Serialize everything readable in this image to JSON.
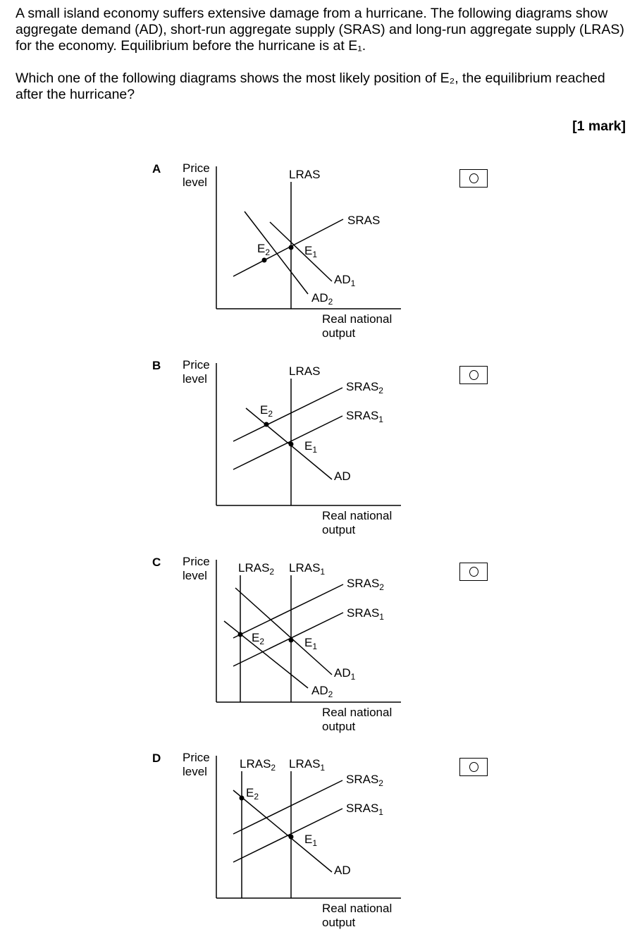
{
  "question": {
    "intro": "A small island economy suffers extensive damage from a hurricane.  The following diagrams show aggregate demand (AD), short-run aggregate supply (SRAS) and long-run aggregate supply (LRAS) for the economy.  Equilibrium before the hurricane is at E₁.",
    "prompt": "Which one of the following diagrams shows the most likely position of E₂, the equilibrium reached after the hurricane?",
    "marks": "[1 mark]"
  },
  "axis": {
    "y_line1": "Price",
    "y_line2": "level",
    "x_line1": "Real national",
    "x_line2": "output"
  },
  "options": [
    {
      "letter": "A",
      "labels": {
        "lras": "LRAS",
        "sras": "SRAS",
        "ad1": "AD",
        "ad1_sub": "1",
        "ad2": "AD",
        "ad2_sub": "2",
        "e1": "E",
        "e1_sub": "1",
        "e2": "E",
        "e2_sub": "2"
      }
    },
    {
      "letter": "B",
      "labels": {
        "lras": "LRAS",
        "sras2": "SRAS",
        "sras2_sub": "2",
        "sras1": "SRAS",
        "sras1_sub": "1",
        "ad": "AD",
        "e1": "E",
        "e1_sub": "1",
        "e2": "E",
        "e2_sub": "2"
      }
    },
    {
      "letter": "C",
      "labels": {
        "lras2": "LRAS",
        "lras2_sub": "2",
        "lras1": "LRAS",
        "lras1_sub": "1",
        "sras2": "SRAS",
        "sras2_sub": "2",
        "sras1": "SRAS",
        "sras1_sub": "1",
        "ad1": "AD",
        "ad1_sub": "1",
        "ad2": "AD",
        "ad2_sub": "2",
        "e1": "E",
        "e1_sub": "1",
        "e2": "E",
        "e2_sub": "2"
      }
    },
    {
      "letter": "D",
      "labels": {
        "lras2": "LRAS",
        "lras2_sub": "2",
        "lras1": "LRAS",
        "lras1_sub": "1",
        "sras2": "SRAS",
        "sras2_sub": "2",
        "sras1": "SRAS",
        "sras1_sub": "1",
        "ad": "AD",
        "e1": "E",
        "e1_sub": "1",
        "e2": "E",
        "e2_sub": "2"
      }
    }
  ]
}
